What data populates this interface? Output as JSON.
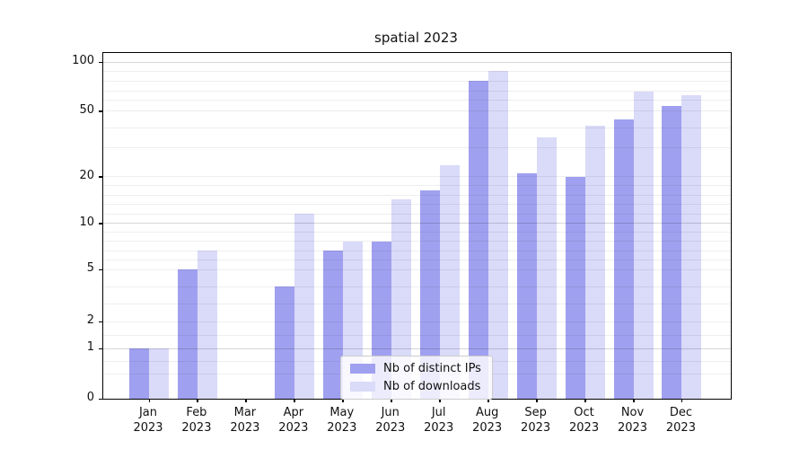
{
  "title": "spatial 2023",
  "legend": {
    "entries": [
      {
        "label": "Nb of distinct IPs",
        "color": "#a0a0f0"
      },
      {
        "label": "Nb of downloads",
        "color": "#dadaf9"
      }
    ],
    "position": "lower center"
  },
  "chart_data": {
    "type": "bar",
    "title": "spatial 2023",
    "categories": [
      "Jan 2023",
      "Feb 2023",
      "Mar 2023",
      "Apr 2023",
      "May 2023",
      "Jun 2023",
      "Jul 2023",
      "Aug 2023",
      "Sep 2023",
      "Oct 2023",
      "Nov 2023",
      "Dec 2023"
    ],
    "series": [
      {
        "name": "Nb of distinct IPs",
        "color": "#a0a0f0",
        "values": [
          1,
          5,
          0,
          4,
          7,
          8,
          17,
          80,
          21,
          20,
          45,
          55
        ]
      },
      {
        "name": "Nb of downloads",
        "color": "#dadaf9",
        "values": [
          1,
          7,
          0,
          12,
          8,
          15,
          24,
          90,
          35,
          41,
          69,
          65
        ]
      }
    ],
    "xlabel": "",
    "ylabel": "",
    "y_axis": {
      "scale": "quasi-log (piecewise)",
      "tick_values": [
        0,
        1,
        2,
        5,
        10,
        20,
        50,
        100
      ],
      "tick_labels": [
        "0",
        "1",
        "2",
        "5",
        "10",
        "20",
        "50",
        "100"
      ],
      "range": [
        0,
        100
      ]
    },
    "grid": true,
    "legend_position": "lower center"
  }
}
